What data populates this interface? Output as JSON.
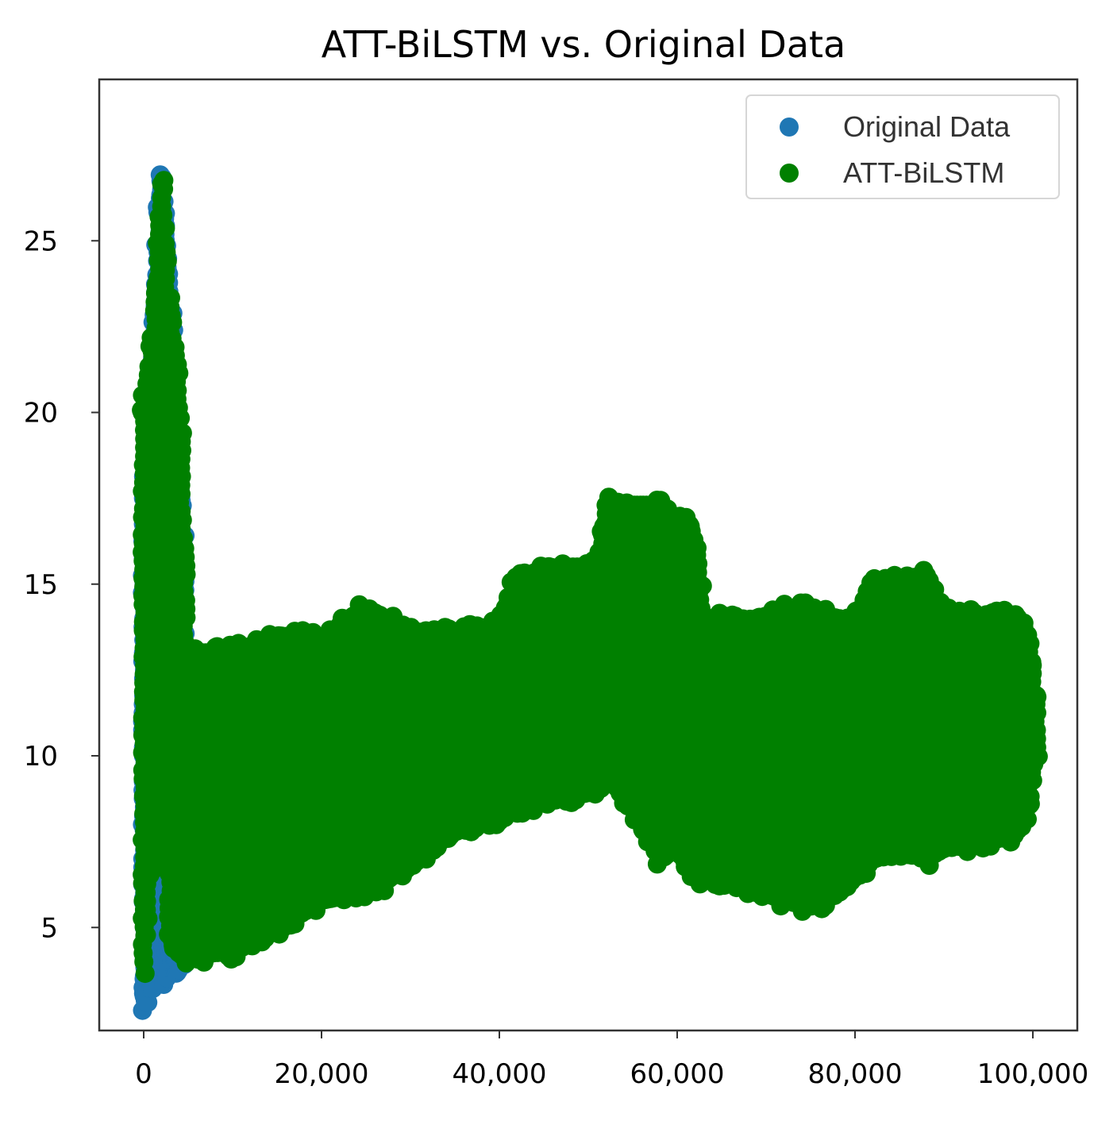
{
  "chart_data": {
    "type": "scatter",
    "title": "ATT-BiLSTM vs. Original Data",
    "xlabel": "",
    "ylabel": "",
    "xlim": [
      -5000,
      105000
    ],
    "ylim": [
      2.0,
      29.7
    ],
    "x_ticks": [
      0,
      20000,
      40000,
      60000,
      80000,
      100000
    ],
    "x_tick_labels": [
      "0",
      "20,000",
      "40,000",
      "60,000",
      "80,000",
      "100,000"
    ],
    "y_ticks": [
      5,
      10,
      15,
      20,
      25
    ],
    "y_tick_labels": [
      "5",
      "10",
      "15",
      "20",
      "25"
    ],
    "grid": false,
    "legend_position": "top-right",
    "series": [
      {
        "name": "Original Data",
        "color": "#1f77b4",
        "envelope": [
          {
            "x": 0,
            "low": 3.0,
            "high": 17.5
          },
          {
            "x": 1000,
            "low": 3.5,
            "high": 21.5
          },
          {
            "x": 2000,
            "low": 4.0,
            "high": 27.2
          },
          {
            "x": 3000,
            "low": 4.0,
            "high": 22.8
          },
          {
            "x": 4500,
            "low": 4.2,
            "high": 16.0
          }
        ]
      },
      {
        "name": "ATT-BiLSTM",
        "color": "#008000",
        "envelope": [
          {
            "x": 0,
            "low": 4.0,
            "high": 20.5
          },
          {
            "x": 1000,
            "low": 7.0,
            "high": 22.5
          },
          {
            "x": 2000,
            "low": 9.5,
            "high": 27.2
          },
          {
            "x": 3000,
            "low": 4.5,
            "high": 22.8
          },
          {
            "x": 4000,
            "low": 4.2,
            "high": 21.0
          },
          {
            "x": 5000,
            "low": 4.2,
            "high": 13.0
          },
          {
            "x": 10000,
            "low": 4.3,
            "high": 13.0
          },
          {
            "x": 15000,
            "low": 5.0,
            "high": 13.5
          },
          {
            "x": 20000,
            "low": 5.8,
            "high": 13.4
          },
          {
            "x": 25000,
            "low": 6.0,
            "high": 14.3
          },
          {
            "x": 30000,
            "low": 6.8,
            "high": 13.6
          },
          {
            "x": 35000,
            "low": 7.8,
            "high": 13.6
          },
          {
            "x": 40000,
            "low": 8.2,
            "high": 13.8
          },
          {
            "x": 42000,
            "low": 8.5,
            "high": 15.2
          },
          {
            "x": 48000,
            "low": 8.8,
            "high": 15.5
          },
          {
            "x": 51000,
            "low": 9.0,
            "high": 15.5
          },
          {
            "x": 52000,
            "low": 9.5,
            "high": 17.3
          },
          {
            "x": 55000,
            "low": 8.5,
            "high": 17.3
          },
          {
            "x": 58000,
            "low": 7.0,
            "high": 17.3
          },
          {
            "x": 60000,
            "low": 7.3,
            "high": 16.8
          },
          {
            "x": 62000,
            "low": 6.5,
            "high": 16.5
          },
          {
            "x": 63000,
            "low": 6.5,
            "high": 14.0
          },
          {
            "x": 68000,
            "low": 6.2,
            "high": 13.8
          },
          {
            "x": 72000,
            "low": 5.8,
            "high": 14.2
          },
          {
            "x": 75000,
            "low": 5.6,
            "high": 14.2
          },
          {
            "x": 78000,
            "low": 6.0,
            "high": 14.0
          },
          {
            "x": 80000,
            "low": 6.5,
            "high": 13.9
          },
          {
            "x": 82000,
            "low": 7.0,
            "high": 15.1
          },
          {
            "x": 86000,
            "low": 7.3,
            "high": 15.0
          },
          {
            "x": 88000,
            "low": 7.0,
            "high": 15.2
          },
          {
            "x": 90000,
            "low": 7.3,
            "high": 14.2
          },
          {
            "x": 95000,
            "low": 7.5,
            "high": 14.0
          },
          {
            "x": 98000,
            "low": 7.7,
            "high": 14.1
          },
          {
            "x": 99500,
            "low": 8.5,
            "high": 13.6
          },
          {
            "x": 100500,
            "low": 10.2,
            "high": 11.5
          }
        ]
      }
    ]
  }
}
